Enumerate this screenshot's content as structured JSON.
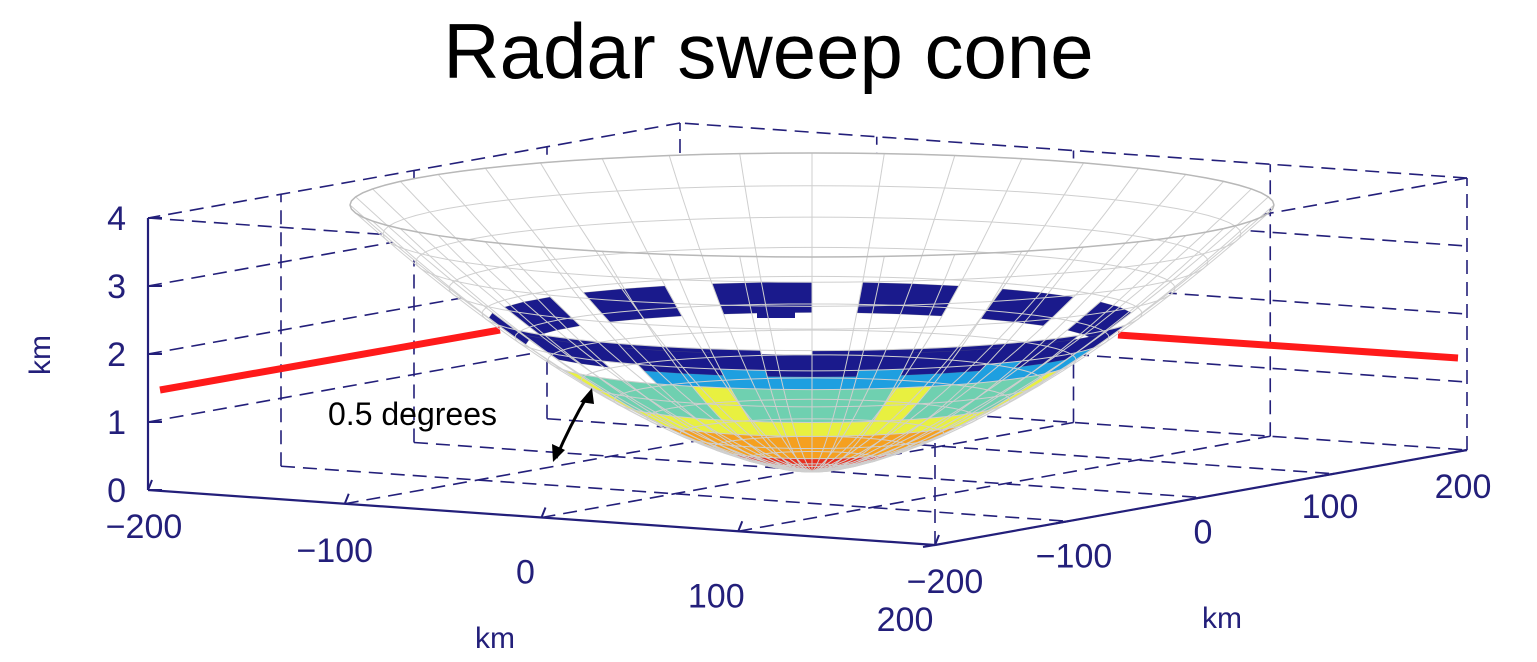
{
  "chart_data": {
    "type": "surface",
    "title": "Radar sweep cone",
    "x_axis": {
      "label": "km",
      "ticks": [
        "−200",
        "−100",
        "0",
        "100",
        "200"
      ],
      "range": [
        -200,
        200
      ]
    },
    "y_axis": {
      "label": "km",
      "ticks": [
        "−200",
        "−100",
        "0",
        "100",
        "200"
      ],
      "range": [
        -200,
        200
      ]
    },
    "z_axis": {
      "label": "km",
      "ticks": [
        "0",
        "1",
        "2",
        "3",
        "4"
      ],
      "range": [
        0,
        4
      ]
    },
    "elevation_angle_deg": 0.5,
    "annotation": "0.5 degrees",
    "beam_line_color": "#ff1a1a",
    "axis_color": "#231f7a",
    "mesh_color": "#cfcfcf",
    "colormap": [
      "#1a1a8c",
      "#1e9fe0",
      "#6fd0b0",
      "#e8f040",
      "#f5a020",
      "#e83020"
    ]
  }
}
